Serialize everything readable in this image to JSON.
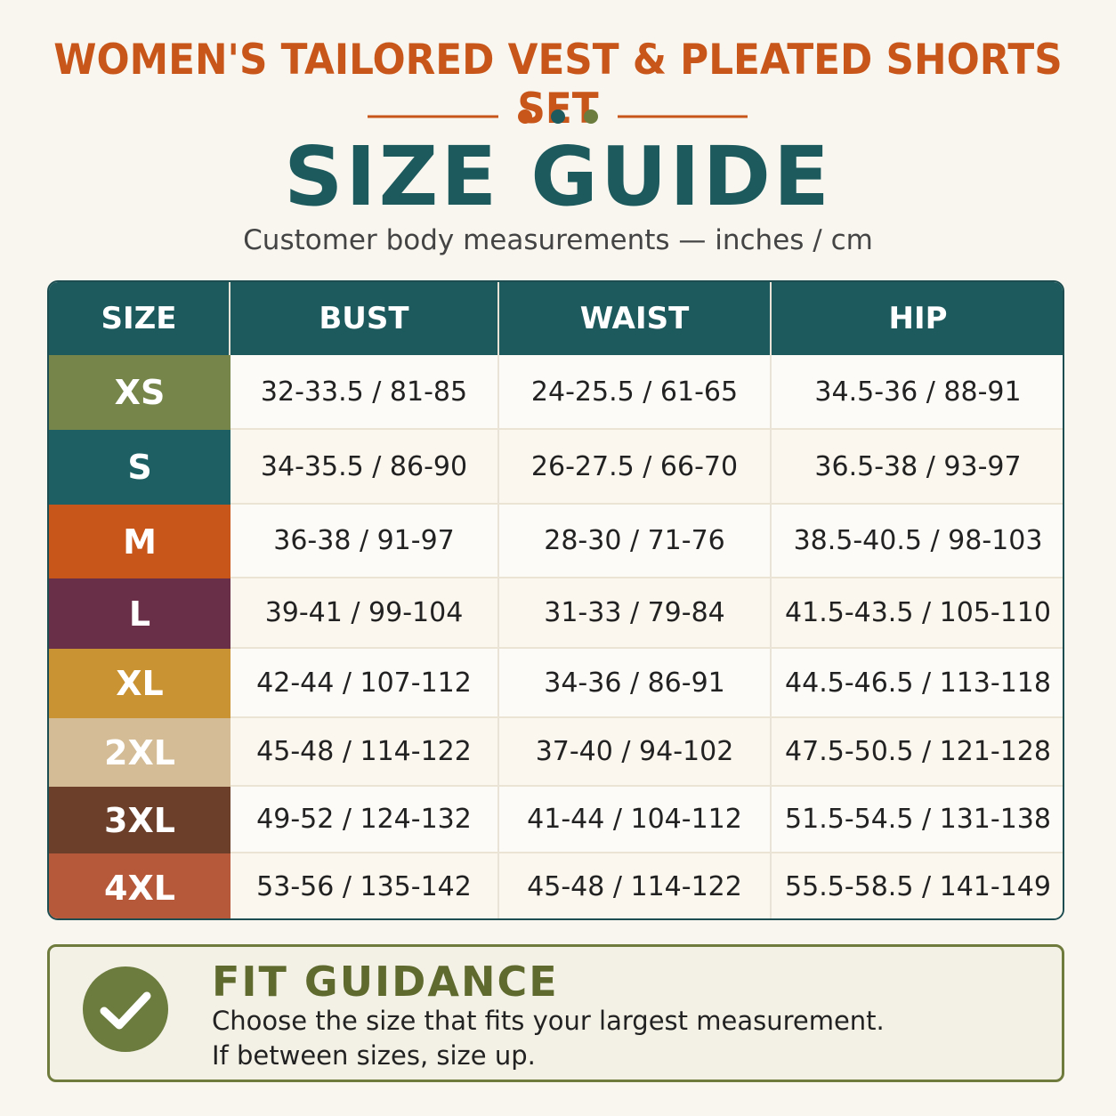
{
  "header": {
    "title": "WOMEN'S TAILORED VEST & PLEATED SHORTS SET",
    "heading": "SIZE GUIDE",
    "subtitle": "Customer body measurements — inches / cm"
  },
  "table": {
    "columns": [
      "SIZE",
      "BUST",
      "WAIST",
      "HIP"
    ],
    "rows": [
      [
        "XS",
        "32-33.5 / 81-85",
        "24-25.5 / 61-65",
        "34.5-36 / 88-91"
      ],
      [
        "S",
        "34-35.5 / 86-90",
        "26-27.5 / 66-70",
        "36.5-38 / 93-97"
      ],
      [
        "M",
        "36-38 / 91-97",
        "28-30 / 71-76",
        "38.5-40.5 / 98-103"
      ],
      [
        "L",
        "39-41 / 99-104",
        "31-33 / 79-84",
        "41.5-43.5 / 105-110"
      ],
      [
        "XL",
        "42-44 / 107-112",
        "34-36 / 86-91",
        "44.5-46.5 / 113-118"
      ],
      [
        "2XL",
        "45-48 / 114-122",
        "37-40 / 94-102",
        "47.5-50.5 / 121-128"
      ],
      [
        "3XL",
        "49-52 / 124-132",
        "41-44 / 104-112",
        "51.5-54.5 / 131-138"
      ],
      [
        "4XL",
        "53-56 / 135-142",
        "45-48 / 114-122",
        "55.5-58.5 / 141-149"
      ]
    ]
  },
  "fit": {
    "title": "FIT GUIDANCE",
    "lines": [
      "Choose the size that fits your largest measurement.",
      "If between sizes, size up."
    ]
  }
}
